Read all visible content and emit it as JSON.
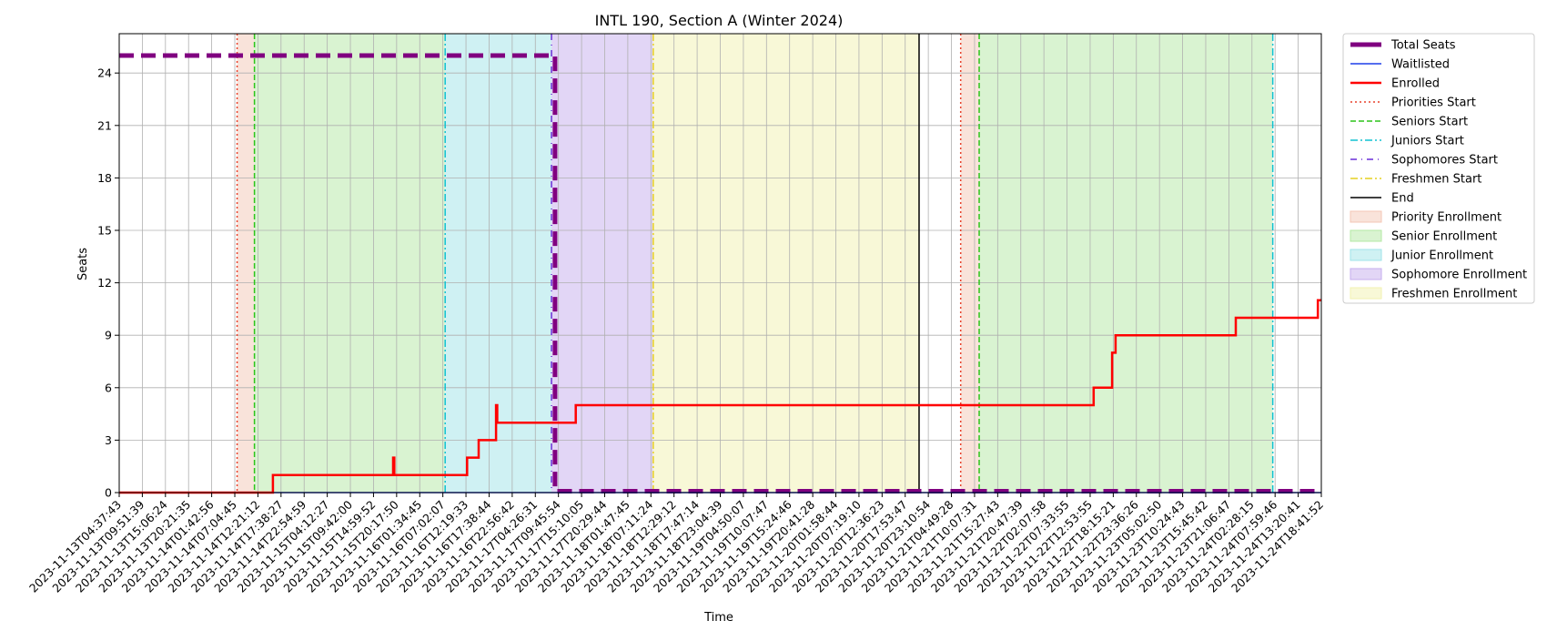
{
  "chart_data": {
    "type": "line",
    "title": "INTL 190, Section A (Winter 2024)",
    "xlabel": "Time",
    "ylabel": "Seats",
    "ylim": [
      0,
      26.25
    ],
    "yticks": [
      0,
      3,
      6,
      9,
      12,
      15,
      18,
      21,
      24
    ],
    "grid": true,
    "legend_position": "outside-right",
    "x_tick_labels": [
      "2023-11-13T04:37:43",
      "2023-11-13T09:51:39",
      "2023-11-13T15:06:24",
      "2023-11-13T20:21:35",
      "2023-11-14T01:42:56",
      "2023-11-14T07:04:45",
      "2023-11-14T12:21:12",
      "2023-11-14T17:38:27",
      "2023-11-14T22:54:59",
      "2023-11-15T04:12:27",
      "2023-11-15T09:42:00",
      "2023-11-15T14:59:52",
      "2023-11-15T20:17:50",
      "2023-11-16T01:34:45",
      "2023-11-16T07:02:07",
      "2023-11-16T12:19:33",
      "2023-11-16T17:38:44",
      "2023-11-16T22:56:42",
      "2023-11-17T04:26:31",
      "2023-11-17T09:45:54",
      "2023-11-17T15:10:05",
      "2023-11-17T20:29:44",
      "2023-11-18T01:47:45",
      "2023-11-18T07:11:24",
      "2023-11-18T12:29:12",
      "2023-11-18T17:47:14",
      "2023-11-18T23:04:39",
      "2023-11-19T04:50:07",
      "2023-11-19T10:07:47",
      "2023-11-19T15:24:46",
      "2023-11-19T20:41:28",
      "2023-11-20T01:58:44",
      "2023-11-20T07:19:10",
      "2023-11-20T12:36:23",
      "2023-11-20T17:53:47",
      "2023-11-20T23:10:54",
      "2023-11-21T04:49:28",
      "2023-11-21T10:07:31",
      "2023-11-21T15:27:43",
      "2023-11-21T20:47:39",
      "2023-11-22T02:07:58",
      "2023-11-22T07:33:55",
      "2023-11-22T12:53:55",
      "2023-11-22T18:15:21",
      "2023-11-22T23:36:26",
      "2023-11-23T05:02:50",
      "2023-11-23T10:24:43",
      "2023-11-23T15:45:42",
      "2023-11-23T21:06:47",
      "2023-11-24T02:28:15",
      "2023-11-24T07:59:46",
      "2023-11-24T13:20:41",
      "2023-11-24T18:41:52"
    ],
    "phases": [
      {
        "name": "Priority Enrollment",
        "start": 5.1,
        "end": 5.85,
        "color": "#f4c7b5"
      },
      {
        "name": "Senior Enrollment",
        "start": 5.85,
        "end": 14.1,
        "color": "#b4e8a4"
      },
      {
        "name": "Junior Enrollment",
        "start": 14.1,
        "end": 18.7,
        "color": "#9fe3e8"
      },
      {
        "name": "Sophomore Enrollment",
        "start": 18.7,
        "end": 23.1,
        "color": "#c5aeee"
      },
      {
        "name": "Freshmen Enrollment",
        "start": 23.1,
        "end": 34.6,
        "color": "#f2f2b0"
      },
      {
        "name": "Priority Enrollment",
        "start": 36.4,
        "end": 37.2,
        "color": "#f4c7b5"
      },
      {
        "name": "Senior Enrollment",
        "start": 37.2,
        "end": 49.9,
        "color": "#b4e8a4"
      }
    ],
    "markers": [
      {
        "name": "Priorities Start",
        "x": 5.1,
        "color": "#e8402a",
        "dash": "2,3"
      },
      {
        "name": "Seniors Start",
        "x": 5.85,
        "color": "#2cc41a",
        "dash": "6,3"
      },
      {
        "name": "Juniors Start",
        "x": 14.1,
        "color": "#10c2d2",
        "dash": "8,3,2,3"
      },
      {
        "name": "Sophomores Start",
        "x": 18.7,
        "color": "#6a2fd8",
        "dash": "7,5,1,5"
      },
      {
        "name": "Freshmen Start",
        "x": 23.1,
        "color": "#e6d020",
        "dash": "8,3,2,3"
      },
      {
        "name": "End",
        "x": 34.6,
        "color": "#000000",
        "dash": ""
      },
      {
        "name": "Priorities Start",
        "x": 36.4,
        "color": "#e8402a",
        "dash": "2,3"
      },
      {
        "name": "Seniors Start",
        "x": 37.2,
        "color": "#2cc41a",
        "dash": "6,3"
      },
      {
        "name": "Juniors Start",
        "x": 49.9,
        "color": "#10c2d2",
        "dash": "8,3,2,3"
      }
    ],
    "series": [
      {
        "name": "Total Seats",
        "color": "#800080",
        "points": [
          [
            0,
            25
          ],
          [
            18.85,
            25
          ],
          [
            18.85,
            0.08
          ],
          [
            52,
            0.08
          ]
        ]
      },
      {
        "name": "Waitlisted",
        "color": "#1f3fe8",
        "points": [
          [
            0,
            0
          ],
          [
            52,
            0
          ]
        ]
      },
      {
        "name": "Enrolled",
        "color": "#ff0000",
        "points": [
          [
            0,
            0
          ],
          [
            6.65,
            0
          ],
          [
            6.65,
            1
          ],
          [
            11.85,
            1
          ],
          [
            11.85,
            2
          ],
          [
            11.9,
            2
          ],
          [
            11.9,
            1
          ],
          [
            15.05,
            1
          ],
          [
            15.05,
            2
          ],
          [
            15.55,
            2
          ],
          [
            15.55,
            3
          ],
          [
            16.3,
            3
          ],
          [
            16.3,
            5
          ],
          [
            16.35,
            5
          ],
          [
            16.35,
            4
          ],
          [
            19.75,
            4
          ],
          [
            19.75,
            5
          ],
          [
            42.15,
            5
          ],
          [
            42.15,
            6
          ],
          [
            42.95,
            6
          ],
          [
            42.95,
            8
          ],
          [
            43.1,
            8
          ],
          [
            43.1,
            9
          ],
          [
            48.3,
            9
          ],
          [
            48.3,
            10
          ],
          [
            51.85,
            10
          ],
          [
            51.85,
            11
          ],
          [
            52,
            11
          ]
        ]
      }
    ],
    "legend": [
      {
        "label": "Total Seats",
        "kind": "line",
        "color": "#800080",
        "dash": "",
        "width": 5
      },
      {
        "label": "Waitlisted",
        "kind": "line",
        "color": "#1f3fe8",
        "dash": "",
        "width": 1.5
      },
      {
        "label": "Enrolled",
        "kind": "line",
        "color": "#ff0000",
        "dash": "",
        "width": 2.5
      },
      {
        "label": "Priorities Start",
        "kind": "line",
        "color": "#e8402a",
        "dash": "2,3",
        "width": 1.5
      },
      {
        "label": "Seniors Start",
        "kind": "line",
        "color": "#2cc41a",
        "dash": "6,3",
        "width": 1.5
      },
      {
        "label": "Juniors Start",
        "kind": "line",
        "color": "#10c2d2",
        "dash": "8,3,2,3",
        "width": 1.5
      },
      {
        "label": "Sophomores Start",
        "kind": "line",
        "color": "#6a2fd8",
        "dash": "7,5,1,5",
        "width": 1.5
      },
      {
        "label": "Freshmen Start",
        "kind": "line",
        "color": "#e6d020",
        "dash": "8,3,2,3",
        "width": 1.5
      },
      {
        "label": "End",
        "kind": "line",
        "color": "#000000",
        "dash": "",
        "width": 1.5
      },
      {
        "label": "Priority Enrollment",
        "kind": "patch",
        "color": "#f4c7b5"
      },
      {
        "label": "Senior Enrollment",
        "kind": "patch",
        "color": "#b4e8a4"
      },
      {
        "label": "Junior Enrollment",
        "kind": "patch",
        "color": "#9fe3e8"
      },
      {
        "label": "Sophomore Enrollment",
        "kind": "patch",
        "color": "#c5aeee"
      },
      {
        "label": "Freshmen Enrollment",
        "kind": "patch",
        "color": "#f2f2b0"
      }
    ]
  }
}
